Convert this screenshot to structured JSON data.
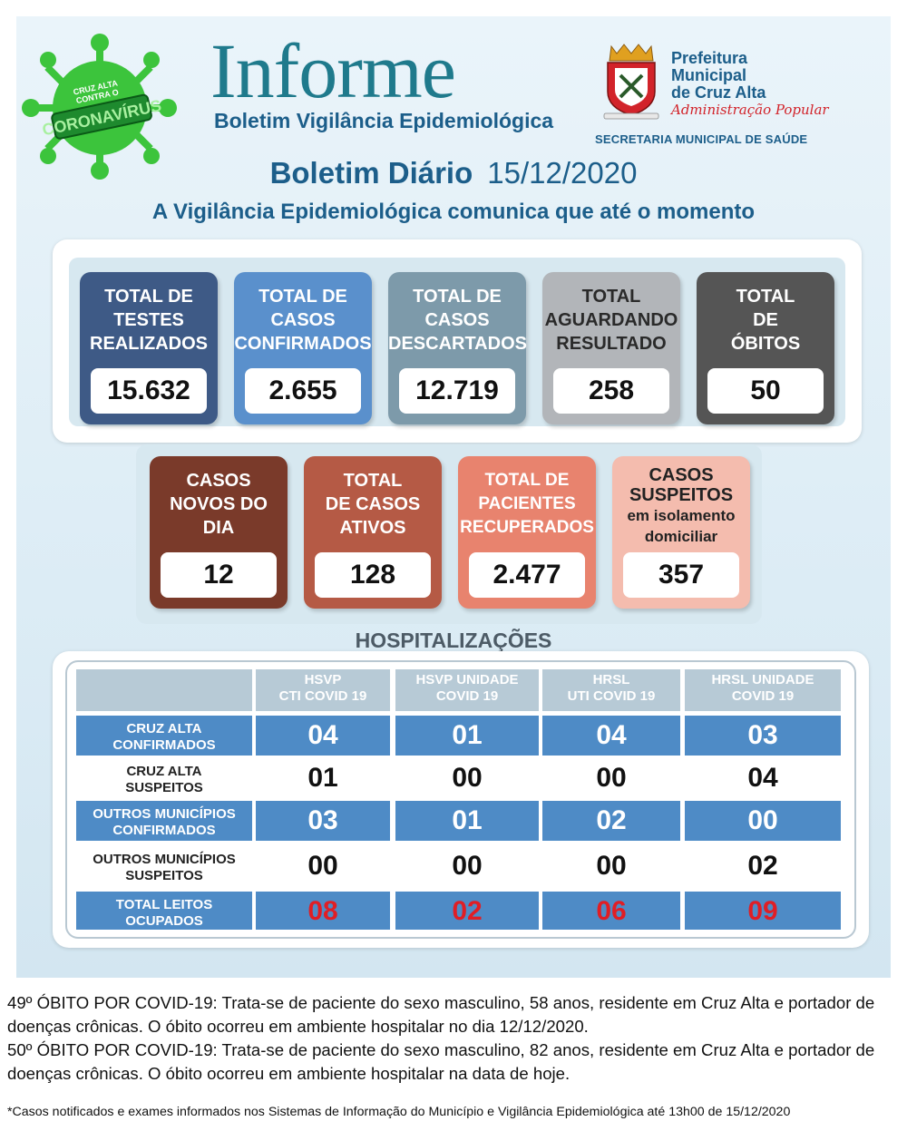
{
  "header": {
    "virus_badge": {
      "line1": "CRUZ ALTA",
      "line2": "CONTRA O",
      "line3": "CORONAVÍRUS"
    },
    "title": "Informe",
    "subtitle": "Boletim Vigilância Epidemiológica",
    "prefeitura": {
      "line1": "Prefeitura",
      "line2": "Municipal",
      "line3": "de Cruz Alta",
      "slogan": "Administração Popular"
    },
    "secretaria": "SECRETARIA MUNICIPAL DE SAÚDE",
    "boletim_label": "Boletim Diário",
    "boletim_date": "15/12/2020",
    "comunica": "A Vigilância Epidemiológica comunica que até o momento"
  },
  "stats_row1": [
    {
      "label": "TOTAL DE TESTES REALIZADOS",
      "value": "15.632",
      "color": "#3e5a86"
    },
    {
      "label": "TOTAL DE CASOS CONFIRMADOS",
      "value": "2.655",
      "color": "#5a90cc"
    },
    {
      "label": "TOTAL DE CASOS DESCARTADOS",
      "value": "12.719",
      "color": "#7d9aaa"
    },
    {
      "label": "TOTAL AGUARDANDO RESULTADO",
      "value": "258",
      "color": "#b2b5b9"
    },
    {
      "label": "TOTAL DE ÓBITOS",
      "value": "50",
      "color": "#555555"
    }
  ],
  "stats_row2": [
    {
      "label": "CASOS NOVOS DO DIA",
      "value": "12",
      "color": "#7a3a2a"
    },
    {
      "label": "TOTAL DE CASOS ATIVOS",
      "value": "128",
      "color": "#b55a45"
    },
    {
      "label": "TOTAL DE PACIENTES RECUPERADOS",
      "value": "2.477",
      "color": "#e8836e"
    },
    {
      "label": "CASOS SUSPEITOS em isolamento domiciliar",
      "value": "357",
      "color": "#f4bcae"
    }
  ],
  "hospital": {
    "title": "HOSPITALIZAÇÕES",
    "columns": [
      "HSVP CTI COVID 19",
      "HSVP UNIDADE COVID 19",
      "HRSL UTI COVID 19",
      "HRSL UNIDADE COVID 19"
    ],
    "rows": [
      {
        "label": "CRUZ ALTA CONFIRMADOS",
        "values": [
          "04",
          "01",
          "04",
          "03"
        ]
      },
      {
        "label": "CRUZ ALTA SUSPEITOS",
        "values": [
          "01",
          "00",
          "00",
          "04"
        ]
      },
      {
        "label": "OUTROS MUNICÍPIOS CONFIRMADOS",
        "values": [
          "03",
          "01",
          "02",
          "00"
        ]
      },
      {
        "label": "OUTROS MUNICÍPIOS SUSPEITOS",
        "values": [
          "00",
          "00",
          "00",
          "02"
        ]
      },
      {
        "label": "TOTAL LEITOS OCUPADOS",
        "values": [
          "08",
          "02",
          "06",
          "09"
        ]
      }
    ]
  },
  "notes": [
    "49º ÓBITO POR COVID-19: Trata-se de paciente do sexo masculino, 58 anos, residente em  Cruz Alta e portador de doenças crônicas. O óbito ocorreu em ambiente hospitalar no dia 12/12/2020.",
    "50º ÓBITO POR COVID-19: Trata-se de paciente do sexo masculino, 82 anos, residente em Cruz Alta e portador de doenças crônicas. O óbito ocorreu em ambiente hospitalar na data de hoje."
  ],
  "footnote": "*Casos notificados e exames informados nos Sistemas de Informação do Município e Vigilância Epidemiológica até 13h00 de 15/12/2020"
}
